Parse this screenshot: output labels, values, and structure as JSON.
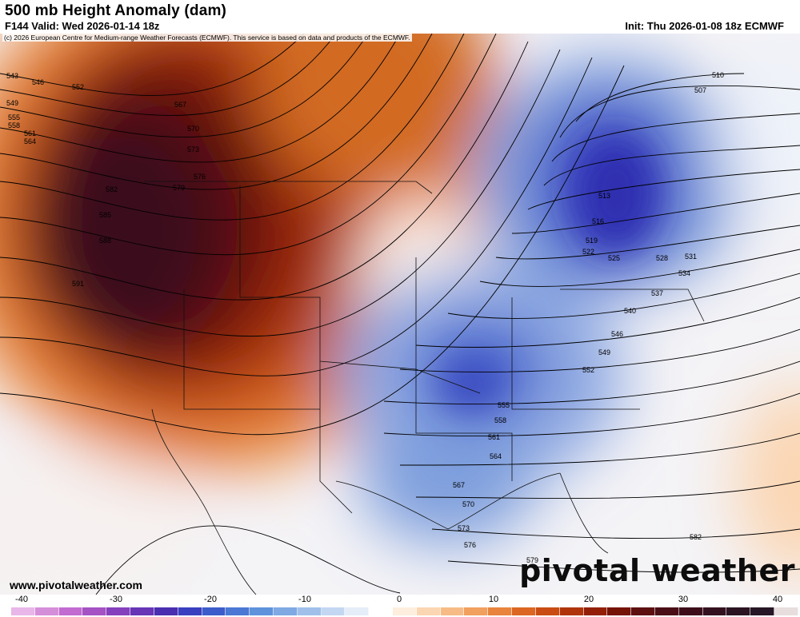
{
  "header": {
    "title": "500 mb Height Anomaly (dam)",
    "valid": "F144 Valid: Wed 2026-01-14 18z",
    "init": "Init: Thu 2026-01-08 18z ECMWF"
  },
  "copyright": "(c) 2026 European Centre for Medium-range Weather Forecasts (ECMWF). This service is based on data and products of the ECMWF.",
  "footer": {
    "site_url": "www.pivotalweather.com",
    "logo": "pivotal weather"
  },
  "colorbar": {
    "ticks": [
      "-40",
      "-30",
      "-20",
      "-10",
      "0",
      "10",
      "20",
      "30",
      "40"
    ],
    "colors": [
      "#e8b6e8",
      "#d58fd9",
      "#c26bd0",
      "#a452c4",
      "#8540bd",
      "#6735b6",
      "#4a2eb0",
      "#3a3fc0",
      "#3d5ccb",
      "#4a78d4",
      "#5e93dc",
      "#7ea9e3",
      "#a0c0ea",
      "#c3d7f2",
      "#e4edf8",
      "#ffffff",
      "#fdeedd",
      "#fbd6b2",
      "#f7bc86",
      "#f2a05e",
      "#e9843c",
      "#dc6722",
      "#c94d12",
      "#b03409",
      "#931f07",
      "#761307",
      "#5c1010",
      "#4a0f16",
      "#3e0d1a",
      "#34111f",
      "#2c1422",
      "#271726",
      "#e8dede"
    ]
  },
  "contours": {
    "line_color": "#000000",
    "labels": [
      "543",
      "546",
      "549",
      "552",
      "555",
      "558",
      "561",
      "564",
      "567",
      "570",
      "573",
      "576",
      "579",
      "582",
      "585",
      "588",
      "591",
      "510",
      "507",
      "513",
      "516",
      "519",
      "522",
      "525",
      "528",
      "531",
      "534",
      "537",
      "540",
      "546",
      "549",
      "552",
      "555",
      "558",
      "561",
      "564",
      "567",
      "570",
      "573",
      "576",
      "579",
      "582"
    ]
  }
}
